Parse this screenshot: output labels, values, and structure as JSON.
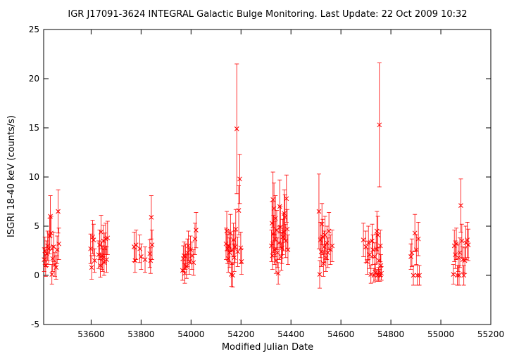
{
  "chart_data": {
    "type": "scatter",
    "title": "IGR J17091-3624   INTEGRAL Galactic Bulge Monitoring.  Last Update: 22 Oct 2009 10:32",
    "xlabel": "Modified Julian Date",
    "ylabel": "ISGRI 18-40 keV (counts/s)",
    "xlim": [
      53410,
      55200
    ],
    "ylim": [
      -5,
      25
    ],
    "xticks": [
      53600,
      53800,
      54000,
      54200,
      54400,
      54600,
      54800,
      55000,
      55200
    ],
    "yticks": [
      -5,
      0,
      5,
      10,
      15,
      20,
      25
    ],
    "grid": false,
    "marker": "x",
    "color": "#ff0000",
    "series": [
      {
        "points": [
          {
            "x": 53412,
            "y": 1.6,
            "err": 1.2
          },
          {
            "x": 53415,
            "y": 2.5,
            "err": 1.4
          },
          {
            "x": 53418,
            "y": 1.0,
            "err": 1.1
          },
          {
            "x": 53422,
            "y": 2.2,
            "err": 1.3
          },
          {
            "x": 53426,
            "y": 3.0,
            "err": 1.5
          },
          {
            "x": 53430,
            "y": 2.7,
            "err": 1.6
          },
          {
            "x": 53434,
            "y": 4.0,
            "err": 1.8
          },
          {
            "x": 53437,
            "y": 6.0,
            "err": 2.1
          },
          {
            "x": 53440,
            "y": 4.3,
            "err": 1.7
          },
          {
            "x": 53443,
            "y": 0.1,
            "err": 1.0
          },
          {
            "x": 53446,
            "y": 1.7,
            "err": 1.3
          },
          {
            "x": 53450,
            "y": 2.9,
            "err": 1.5
          },
          {
            "x": 53455,
            "y": 1.1,
            "err": 1.2
          },
          {
            "x": 53460,
            "y": 0.8,
            "err": 1.2
          },
          {
            "x": 53464,
            "y": 2.6,
            "err": 1.4
          },
          {
            "x": 53468,
            "y": 6.5,
            "err": 2.2
          },
          {
            "x": 53471,
            "y": 3.2,
            "err": 1.6
          },
          {
            "x": 53598,
            "y": 2.7,
            "err": 1.5
          },
          {
            "x": 53602,
            "y": 0.8,
            "err": 1.2
          },
          {
            "x": 53606,
            "y": 3.9,
            "err": 1.7
          },
          {
            "x": 53610,
            "y": 3.6,
            "err": 1.6
          },
          {
            "x": 53614,
            "y": 1.5,
            "err": 1.2
          },
          {
            "x": 53630,
            "y": 2.1,
            "err": 1.4
          },
          {
            "x": 53634,
            "y": 3.1,
            "err": 1.5
          },
          {
            "x": 53637,
            "y": 1.0,
            "err": 1.2
          },
          {
            "x": 53640,
            "y": 4.4,
            "err": 1.7
          },
          {
            "x": 53643,
            "y": 2.0,
            "err": 1.4
          },
          {
            "x": 53646,
            "y": 1.7,
            "err": 1.3
          },
          {
            "x": 53649,
            "y": 3.5,
            "err": 1.6
          },
          {
            "x": 53652,
            "y": 1.3,
            "err": 1.3
          },
          {
            "x": 53655,
            "y": 2.8,
            "err": 1.5
          },
          {
            "x": 53658,
            "y": 3.7,
            "err": 1.6
          },
          {
            "x": 53662,
            "y": 1.6,
            "err": 1.3
          },
          {
            "x": 53666,
            "y": 3.8,
            "err": 1.7
          },
          {
            "x": 53772,
            "y": 2.9,
            "err": 1.5
          },
          {
            "x": 53776,
            "y": 1.5,
            "err": 1.2
          },
          {
            "x": 53780,
            "y": 3.1,
            "err": 1.5
          },
          {
            "x": 53795,
            "y": 2.7,
            "err": 1.4
          },
          {
            "x": 53800,
            "y": 1.9,
            "err": 1.3
          },
          {
            "x": 53816,
            "y": 1.6,
            "err": 1.3
          },
          {
            "x": 53835,
            "y": 2.2,
            "err": 1.4
          },
          {
            "x": 53838,
            "y": 1.5,
            "err": 1.3
          },
          {
            "x": 53841,
            "y": 5.9,
            "err": 2.2
          },
          {
            "x": 53844,
            "y": 3.1,
            "err": 1.5
          },
          {
            "x": 53966,
            "y": 0.5,
            "err": 1.0
          },
          {
            "x": 53969,
            "y": 1.7,
            "err": 1.3
          },
          {
            "x": 53972,
            "y": 2.0,
            "err": 1.4
          },
          {
            "x": 53975,
            "y": 0.2,
            "err": 1.0
          },
          {
            "x": 53978,
            "y": 1.9,
            "err": 1.3
          },
          {
            "x": 53982,
            "y": 0.9,
            "err": 1.2
          },
          {
            "x": 53986,
            "y": 2.3,
            "err": 1.4
          },
          {
            "x": 53989,
            "y": 3.0,
            "err": 1.5
          },
          {
            "x": 53993,
            "y": 1.4,
            "err": 1.3
          },
          {
            "x": 53998,
            "y": 2.6,
            "err": 1.4
          },
          {
            "x": 54004,
            "y": 2.0,
            "err": 1.4
          },
          {
            "x": 54010,
            "y": 1.3,
            "err": 1.3
          },
          {
            "x": 54016,
            "y": 3.7,
            "err": 1.6
          },
          {
            "x": 54020,
            "y": 4.6,
            "err": 1.8
          },
          {
            "x": 54140,
            "y": 3.2,
            "err": 1.6
          },
          {
            "x": 54143,
            "y": 4.5,
            "err": 2.0
          },
          {
            "x": 54146,
            "y": 2.7,
            "err": 1.5
          },
          {
            "x": 54149,
            "y": 1.7,
            "err": 1.4
          },
          {
            "x": 54152,
            "y": 3.0,
            "err": 1.6
          },
          {
            "x": 54155,
            "y": 2.3,
            "err": 1.5
          },
          {
            "x": 54158,
            "y": 4.3,
            "err": 1.9
          },
          {
            "x": 54161,
            "y": 0.1,
            "err": 1.2
          },
          {
            "x": 54164,
            "y": 2.6,
            "err": 1.5
          },
          {
            "x": 54167,
            "y": 0.0,
            "err": 1.2
          },
          {
            "x": 54170,
            "y": 3.6,
            "err": 1.7
          },
          {
            "x": 54173,
            "y": 1.8,
            "err": 1.4
          },
          {
            "x": 54176,
            "y": 2.9,
            "err": 1.6
          },
          {
            "x": 54179,
            "y": 4.7,
            "err": 2.0
          },
          {
            "x": 54183,
            "y": 14.9,
            "err": 6.6
          },
          {
            "x": 54187,
            "y": 2.4,
            "err": 1.5
          },
          {
            "x": 54191,
            "y": 6.6,
            "err": 2.5
          },
          {
            "x": 54195,
            "y": 9.8,
            "err": 2.5
          },
          {
            "x": 54199,
            "y": 2.8,
            "err": 1.6
          },
          {
            "x": 54202,
            "y": 1.4,
            "err": 1.3
          },
          {
            "x": 54322,
            "y": 3.0,
            "err": 1.6
          },
          {
            "x": 54324,
            "y": 5.3,
            "err": 2.2
          },
          {
            "x": 54326,
            "y": 2.0,
            "err": 1.4
          },
          {
            "x": 54328,
            "y": 7.7,
            "err": 2.8
          },
          {
            "x": 54330,
            "y": 4.2,
            "err": 1.9
          },
          {
            "x": 54332,
            "y": 6.8,
            "err": 2.6
          },
          {
            "x": 54334,
            "y": 2.6,
            "err": 1.5
          },
          {
            "x": 54336,
            "y": 3.7,
            "err": 1.8
          },
          {
            "x": 54338,
            "y": 5.8,
            "err": 2.3
          },
          {
            "x": 54340,
            "y": 1.5,
            "err": 1.3
          },
          {
            "x": 54343,
            "y": 4.6,
            "err": 2.0
          },
          {
            "x": 54346,
            "y": 2.3,
            "err": 1.5
          },
          {
            "x": 54349,
            "y": 0.2,
            "err": 1.1
          },
          {
            "x": 54352,
            "y": 3.3,
            "err": 1.7
          },
          {
            "x": 54355,
            "y": 7.0,
            "err": 2.7
          },
          {
            "x": 54358,
            "y": 4.9,
            "err": 2.1
          },
          {
            "x": 54361,
            "y": 1.9,
            "err": 1.4
          },
          {
            "x": 54364,
            "y": 2.8,
            "err": 1.6
          },
          {
            "x": 54367,
            "y": 3.9,
            "err": 1.8
          },
          {
            "x": 54370,
            "y": 4.4,
            "err": 1.9
          },
          {
            "x": 54373,
            "y": 6.3,
            "err": 2.4
          },
          {
            "x": 54376,
            "y": 5.9,
            "err": 2.3
          },
          {
            "x": 54379,
            "y": 3.5,
            "err": 1.7
          },
          {
            "x": 54382,
            "y": 7.8,
            "err": 2.4
          },
          {
            "x": 54385,
            "y": 4.7,
            "err": 2.0
          },
          {
            "x": 54388,
            "y": 2.6,
            "err": 1.5
          },
          {
            "x": 54512,
            "y": 6.5,
            "err": 3.8
          },
          {
            "x": 54515,
            "y": 0.1,
            "err": 1.4
          },
          {
            "x": 54518,
            "y": 3.6,
            "err": 1.8
          },
          {
            "x": 54521,
            "y": 2.4,
            "err": 1.5
          },
          {
            "x": 54524,
            "y": 5.2,
            "err": 2.1
          },
          {
            "x": 54527,
            "y": 3.9,
            "err": 1.8
          },
          {
            "x": 54530,
            "y": 1.2,
            "err": 1.3
          },
          {
            "x": 54533,
            "y": 2.9,
            "err": 1.6
          },
          {
            "x": 54536,
            "y": 4.1,
            "err": 1.9
          },
          {
            "x": 54540,
            "y": 1.8,
            "err": 1.4
          },
          {
            "x": 54544,
            "y": 3.3,
            "err": 1.7
          },
          {
            "x": 54548,
            "y": 2.3,
            "err": 1.5
          },
          {
            "x": 54552,
            "y": 4.5,
            "err": 1.9
          },
          {
            "x": 54558,
            "y": 2.6,
            "err": 1.5
          },
          {
            "x": 54565,
            "y": 3.0,
            "err": 1.6
          },
          {
            "x": 54690,
            "y": 3.6,
            "err": 1.7
          },
          {
            "x": 54700,
            "y": 2.9,
            "err": 1.6
          },
          {
            "x": 54705,
            "y": 1.4,
            "err": 1.3
          },
          {
            "x": 54710,
            "y": 3.3,
            "err": 1.7
          },
          {
            "x": 54715,
            "y": 2.1,
            "err": 1.4
          },
          {
            "x": 54720,
            "y": 0.1,
            "err": 0.9
          },
          {
            "x": 54725,
            "y": 3.5,
            "err": 1.7
          },
          {
            "x": 54728,
            "y": 2.6,
            "err": 1.5
          },
          {
            "x": 54732,
            "y": 0.0,
            "err": 0.7
          },
          {
            "x": 54735,
            "y": 1.9,
            "err": 1.4
          },
          {
            "x": 54738,
            "y": 0.3,
            "err": 0.8
          },
          {
            "x": 54741,
            "y": 2.7,
            "err": 1.5
          },
          {
            "x": 54744,
            "y": 4.5,
            "err": 2.0
          },
          {
            "x": 54746,
            "y": 0.0,
            "err": 0.6
          },
          {
            "x": 54748,
            "y": 4.1,
            "err": 1.9
          },
          {
            "x": 54750,
            "y": 0.1,
            "err": 0.7
          },
          {
            "x": 54752,
            "y": 1.5,
            "err": 1.3
          },
          {
            "x": 54754,
            "y": 15.3,
            "err": 6.3
          },
          {
            "x": 54756,
            "y": 0.0,
            "err": 0.6
          },
          {
            "x": 54758,
            "y": 3.0,
            "err": 1.6
          },
          {
            "x": 54760,
            "y": 1.0,
            "err": 1.1
          },
          {
            "x": 54762,
            "y": 0.2,
            "err": 0.7
          },
          {
            "x": 54880,
            "y": 1.9,
            "err": 1.3
          },
          {
            "x": 54884,
            "y": 2.3,
            "err": 1.4
          },
          {
            "x": 54890,
            "y": 0.0,
            "err": 1.0
          },
          {
            "x": 54896,
            "y": 4.3,
            "err": 1.9
          },
          {
            "x": 54902,
            "y": 2.6,
            "err": 1.5
          },
          {
            "x": 54906,
            "y": 0.0,
            "err": 1.0
          },
          {
            "x": 54910,
            "y": 3.7,
            "err": 1.7
          },
          {
            "x": 54914,
            "y": 0.0,
            "err": 1.0
          },
          {
            "x": 55050,
            "y": 0.1,
            "err": 1.0
          },
          {
            "x": 55054,
            "y": 3.0,
            "err": 1.6
          },
          {
            "x": 55058,
            "y": 2.1,
            "err": 1.4
          },
          {
            "x": 55062,
            "y": 3.2,
            "err": 1.6
          },
          {
            "x": 55066,
            "y": 0.0,
            "err": 1.0
          },
          {
            "x": 55070,
            "y": 1.8,
            "err": 1.4
          },
          {
            "x": 55073,
            "y": 0.0,
            "err": 1.0
          },
          {
            "x": 55076,
            "y": 2.3,
            "err": 1.5
          },
          {
            "x": 55080,
            "y": 7.1,
            "err": 2.7
          },
          {
            "x": 55084,
            "y": 3.5,
            "err": 1.7
          },
          {
            "x": 55088,
            "y": 1.6,
            "err": 1.3
          },
          {
            "x": 55092,
            "y": 0.0,
            "err": 1.0
          },
          {
            "x": 55096,
            "y": 1.5,
            "err": 1.3
          },
          {
            "x": 55100,
            "y": 3.3,
            "err": 1.7
          },
          {
            "x": 55106,
            "y": 3.6,
            "err": 1.8
          },
          {
            "x": 55110,
            "y": 3.1,
            "err": 1.6
          }
        ]
      }
    ]
  }
}
